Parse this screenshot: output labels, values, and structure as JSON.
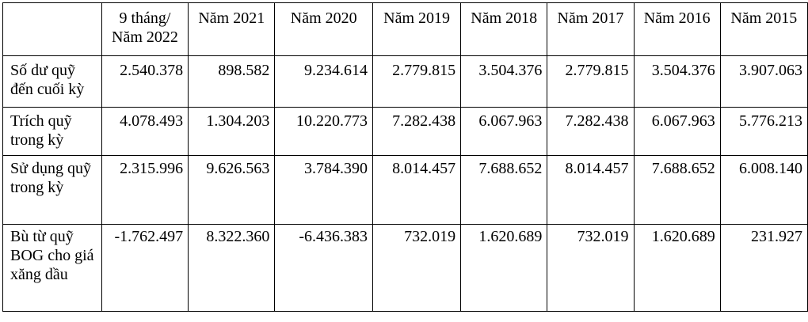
{
  "headers": [
    "",
    "9 tháng/\nNăm 2022",
    "Năm 2021",
    "Năm 2020",
    "Năm 2019",
    "Năm 2018",
    "Năm 2017",
    "Năm 2016",
    "Năm 2015"
  ],
  "rows": [
    {
      "label": "Số dư quỹ đến cuối kỳ",
      "values": [
        "2.540.378",
        "898.582",
        "9.234.614",
        "2.779.815",
        "3.504.376",
        "2.779.815",
        "3.504.376",
        "3.907.063"
      ]
    },
    {
      "label": "Trích quỹ trong kỳ",
      "values": [
        "4.078.493",
        "1.304.203",
        "10.220.773",
        "7.282.438",
        "6.067.963",
        "7.282.438",
        "6.067.963",
        "5.776.213"
      ]
    },
    {
      "label": "Sử dụng quỹ trong kỳ",
      "values": [
        "2.315.996",
        "9.626.563",
        "3.784.390",
        "8.014.457",
        "7.688.652",
        "8.014.457",
        "7.688.652",
        "6.008.140"
      ]
    },
    {
      "label": "Bù từ quỹ BOG cho giá xăng dầu",
      "values": [
        "-1.762.497",
        "8.322.360",
        "-6.436.383",
        "732.019",
        "1.620.689",
        "732.019",
        "1.620.689",
        "231.927"
      ]
    }
  ]
}
